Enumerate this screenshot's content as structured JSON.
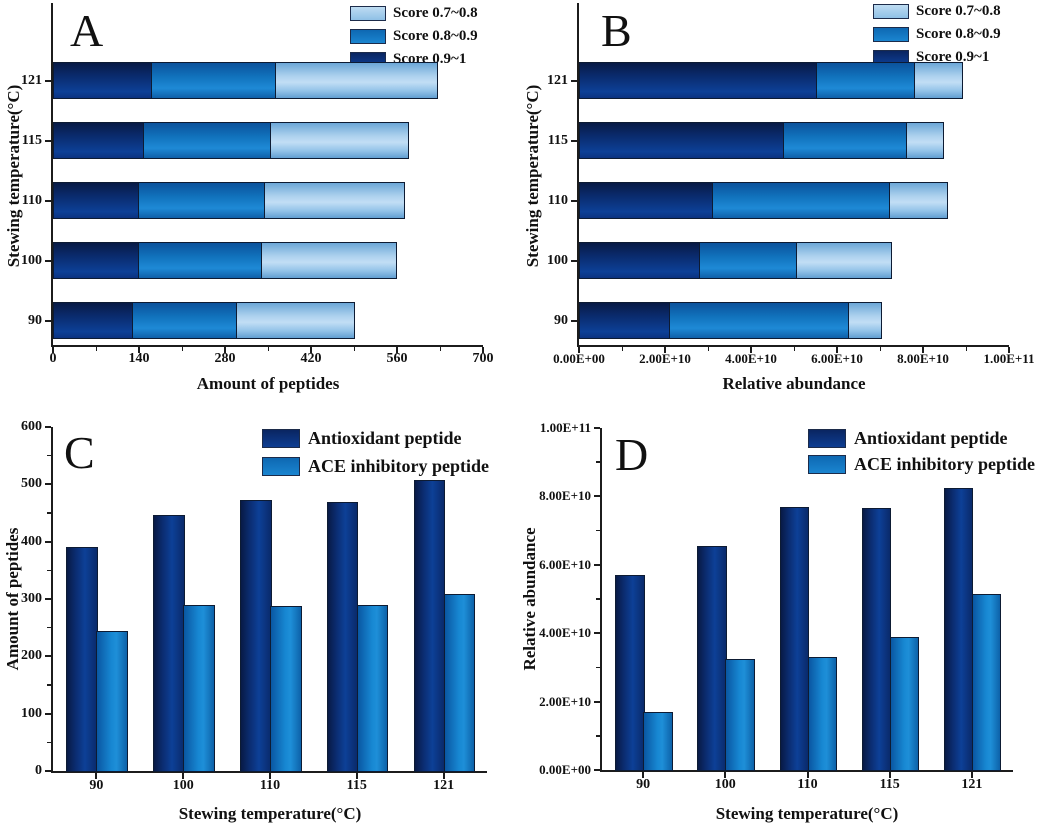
{
  "figure": {
    "background": "#ffffff"
  },
  "colors": {
    "score_0_9_1_dark_navy": "#0d3f97",
    "score_0_8_0_9_medium_blue": "#1787d2",
    "score_0_7_0_8_light_blue": "#aed2ee",
    "antioxidant_dark_navy": "#0d3f97",
    "ace_inhibitory_blue": "#1787d2",
    "axis": "#1c1c1c",
    "text": "#111111"
  },
  "chart_data": [
    {
      "id": "A",
      "title": "A",
      "type": "bar",
      "orientation": "horizontal",
      "stacked": true,
      "xlabel": "Amount of peptides",
      "ylabel": "Stewing temperature(°C)",
      "categories": [
        "90",
        "100",
        "110",
        "115",
        "121"
      ],
      "series": [
        {
          "name": "Score 0.9~1",
          "color": "dark",
          "values": [
            129,
            138,
            138,
            146,
            160
          ]
        },
        {
          "name": "Score 0.8~0.9",
          "color": "medium",
          "values": [
            169,
            201,
            205,
            208,
            202
          ]
        },
        {
          "name": "Score 0.7~0.8",
          "color": "light",
          "values": [
            192,
            219,
            228,
            223,
            262
          ]
        }
      ],
      "stacked_totals": [
        490,
        558,
        571,
        577,
        624
      ],
      "legend": [
        {
          "label": "Score 0.7~0.8",
          "color": "light"
        },
        {
          "label": "Score 0.8~0.9",
          "color": "medium"
        },
        {
          "label": "Score 0.9~1",
          "color": "dark"
        }
      ],
      "legend_position": "top-right",
      "grid": false,
      "xlim": [
        0,
        700
      ],
      "xticks": {
        "values": [
          0,
          140,
          280,
          420,
          560,
          700
        ],
        "labels": [
          "0",
          "140",
          "280",
          "420",
          "560",
          "700"
        ],
        "minor_step": 70
      }
    },
    {
      "id": "B",
      "title": "B",
      "type": "bar",
      "orientation": "horizontal",
      "stacked": true,
      "xlabel": "Relative abundance",
      "ylabel": "Stewing temperature(°C)",
      "categories": [
        "90",
        "100",
        "110",
        "115",
        "121"
      ],
      "series": [
        {
          "name": "Score 0.9~1",
          "color": "dark",
          "values": [
            21000000000.0,
            28000000000.0,
            31000000000.0,
            47500000000.0,
            55000000000.0
          ]
        },
        {
          "name": "Score 0.8~0.9",
          "color": "medium",
          "values": [
            41500000000.0,
            22500000000.0,
            41000000000.0,
            28500000000.0,
            23000000000.0
          ]
        },
        {
          "name": "Score 0.7~0.8",
          "color": "light",
          "values": [
            7500000000.0,
            22000000000.0,
            13500000000.0,
            8500000000.0,
            11000000000.0
          ]
        }
      ],
      "stacked_totals": [
        70000000000.0,
        72500000000.0,
        85500000000.0,
        84500000000.0,
        89000000000.0
      ],
      "legend": [
        {
          "label": "Score 0.7~0.8",
          "color": "light"
        },
        {
          "label": "Score 0.8~0.9",
          "color": "medium"
        },
        {
          "label": "Score 0.9~1",
          "color": "dark"
        }
      ],
      "legend_position": "top-right",
      "grid": false,
      "xlim": [
        0,
        100000000000.0
      ],
      "xticks": {
        "values": [
          0,
          20000000000.0,
          40000000000.0,
          60000000000.0,
          80000000000.0,
          100000000000.0
        ],
        "labels": [
          "0.00E+00",
          "2.00E+10",
          "4.00E+10",
          "6.00E+10",
          "8.00E+10",
          "1.00E+11"
        ],
        "minor_step": 10000000000.0
      }
    },
    {
      "id": "C",
      "title": "C",
      "type": "bar",
      "orientation": "vertical",
      "grouped": true,
      "xlabel": "Stewing temperature(°C)",
      "ylabel": "Amount of peptides",
      "categories": [
        "90",
        "100",
        "110",
        "115",
        "121"
      ],
      "series": [
        {
          "name": "Antioxidant peptide",
          "color": "dark",
          "values": [
            390,
            446,
            472,
            469,
            508
          ]
        },
        {
          "name": "ACE inhibitory peptide",
          "color": "medium",
          "values": [
            245,
            290,
            288,
            290,
            308
          ]
        }
      ],
      "legend": [
        {
          "label": "Antioxidant peptide",
          "color": "dark"
        },
        {
          "label": "ACE inhibitory peptide",
          "color": "medium"
        }
      ],
      "legend_position": "top-right",
      "grid": false,
      "ylim": [
        0,
        600
      ],
      "yticks": {
        "values": [
          0,
          100,
          200,
          300,
          400,
          500,
          600
        ],
        "labels": [
          "0",
          "100",
          "200",
          "300",
          "400",
          "500",
          "600"
        ],
        "minor_step": 50
      }
    },
    {
      "id": "D",
      "title": "D",
      "type": "bar",
      "orientation": "vertical",
      "grouped": true,
      "xlabel": "Stewing temperature(°C)",
      "ylabel": "Relative abundance",
      "categories": [
        "90",
        "100",
        "110",
        "115",
        "121"
      ],
      "series": [
        {
          "name": "Antioxidant peptide",
          "color": "dark",
          "values": [
            57000000000.0,
            65500000000.0,
            77000000000.0,
            76500000000.0,
            82500000000.0
          ]
        },
        {
          "name": "ACE inhibitory peptide",
          "color": "medium",
          "values": [
            17000000000.0,
            32500000000.0,
            33000000000.0,
            39000000000.0,
            51500000000.0
          ]
        }
      ],
      "legend": [
        {
          "label": "Antioxidant peptide",
          "color": "dark"
        },
        {
          "label": "ACE inhibitory peptide",
          "color": "medium"
        }
      ],
      "legend_position": "top-right",
      "grid": false,
      "ylim": [
        0,
        100000000000.0
      ],
      "yticks": {
        "values": [
          0,
          20000000000.0,
          40000000000.0,
          60000000000.0,
          80000000000.0,
          100000000000.0
        ],
        "labels": [
          "0.00E+00",
          "2.00E+10",
          "4.00E+10",
          "6.00E+10",
          "8.00E+10",
          "1.00E+11"
        ],
        "minor_step": 10000000000.0
      }
    }
  ]
}
